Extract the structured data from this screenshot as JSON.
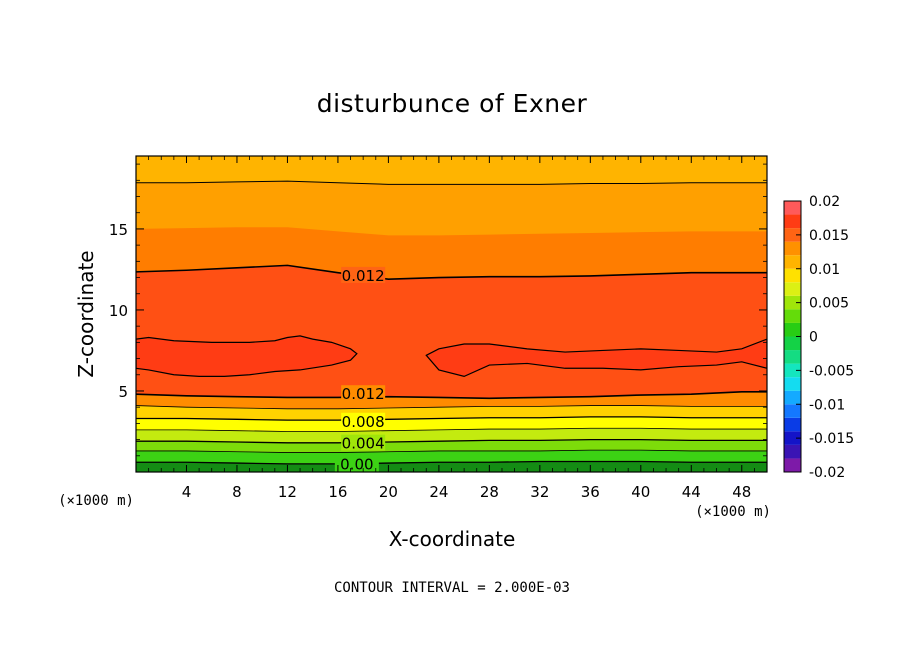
{
  "chart_data": {
    "type": "heatmap",
    "title": "disturbunce of Exner",
    "xlabel": "X-coordinate",
    "ylabel": "Z-coordinate",
    "x_unit_left": "(×1000 m)",
    "x_unit_right": "(×1000 m)",
    "xlim": [
      0,
      50
    ],
    "ylim": [
      0,
      19.5
    ],
    "x_ticks": [
      4,
      8,
      12,
      16,
      20,
      24,
      28,
      32,
      36,
      40,
      44,
      48
    ],
    "y_ticks": [
      5,
      10,
      15
    ],
    "bottom_text": "CONTOUR INTERVAL = 2.000E-03",
    "colorbar": {
      "levels": [
        -0.02,
        -0.018,
        -0.016,
        -0.014,
        -0.012,
        -0.01,
        -0.008,
        -0.006,
        -0.004,
        -0.002,
        0,
        0.002,
        0.004,
        0.006,
        0.008,
        0.01,
        0.012,
        0.014,
        0.016,
        0.018,
        0.02
      ],
      "colors": [
        "#7d1aa8",
        "#3a14b4",
        "#1414c8",
        "#0a3ce6",
        "#1478ff",
        "#14aaff",
        "#14dcf0",
        "#14e6be",
        "#14dc82",
        "#14d246",
        "#28cd14",
        "#64dc0a",
        "#a0e60a",
        "#dcf014",
        "#ffe100",
        "#ffb400",
        "#ff9100",
        "#ff6414",
        "#ff3c14",
        "#ff5a5a",
        "#ff8c8c"
      ],
      "tick_labels": [
        "0.02",
        "0.015",
        "0.01",
        "0.005",
        "0",
        "-0.005",
        "-0.01",
        "-0.015",
        "-0.02"
      ],
      "tick_values": [
        0.02,
        0.015,
        0.01,
        0.005,
        0,
        -0.005,
        -0.01,
        -0.015,
        -0.02
      ]
    },
    "band_boundaries": [
      {
        "name": "0.000",
        "z": [
          0.6,
          0.6,
          0.55,
          0.5,
          0.5,
          0.55,
          0.6,
          0.6,
          0.65,
          0.65,
          0.65,
          0.6,
          0.6
        ],
        "color": "#1e8c14"
      },
      {
        "name": "0.002",
        "z": [
          1.3,
          1.3,
          1.25,
          1.2,
          1.2,
          1.25,
          1.3,
          1.3,
          1.3,
          1.35,
          1.35,
          1.3,
          1.3
        ],
        "color": "#3cd214"
      },
      {
        "name": "0.004",
        "z": [
          1.9,
          1.9,
          1.85,
          1.8,
          1.8,
          1.85,
          1.9,
          1.95,
          1.95,
          2.0,
          2.0,
          1.95,
          1.95
        ],
        "color": "#7ddc0a"
      },
      {
        "name": "0.006",
        "z": [
          2.6,
          2.6,
          2.55,
          2.5,
          2.5,
          2.55,
          2.6,
          2.65,
          2.65,
          2.7,
          2.7,
          2.65,
          2.65
        ],
        "color": "#c3eb0f"
      },
      {
        "name": "0.008",
        "z": [
          3.3,
          3.3,
          3.25,
          3.2,
          3.2,
          3.25,
          3.3,
          3.35,
          3.35,
          3.4,
          3.4,
          3.35,
          3.35
        ],
        "color": "#ffff00"
      },
      {
        "name": "0.010",
        "z": [
          4.1,
          4.0,
          3.95,
          3.9,
          3.9,
          3.95,
          4.0,
          4.05,
          4.05,
          4.1,
          4.1,
          4.05,
          4.05
        ],
        "color": "#ffd200"
      },
      {
        "name": "0.012",
        "z": [
          4.8,
          4.7,
          4.65,
          4.6,
          4.6,
          4.65,
          4.6,
          4.55,
          4.6,
          4.65,
          4.75,
          4.8,
          4.95
        ],
        "color": "#ff8c00"
      }
    ],
    "upper_bands": [
      {
        "name": "0.012",
        "z": [
          12.35,
          12.45,
          12.6,
          12.75,
          12.3,
          11.9,
          12.0,
          12.05,
          12.05,
          12.1,
          12.2,
          12.3,
          12.3
        ],
        "color": "#ff6414"
      },
      {
        "name": "0.010",
        "z": [
          15.0,
          15.05,
          15.1,
          15.1,
          14.85,
          14.6,
          14.6,
          14.65,
          14.7,
          14.75,
          14.8,
          14.85,
          14.85
        ],
        "color": "#ff7d00"
      },
      {
        "name": "0.008",
        "z": [
          17.85,
          17.85,
          17.9,
          17.95,
          17.85,
          17.75,
          17.75,
          17.75,
          17.75,
          17.8,
          17.8,
          17.85,
          17.85
        ],
        "color": "#ffa000"
      }
    ],
    "x_samples": [
      0,
      4,
      8,
      12,
      16,
      20,
      24,
      28,
      32,
      36,
      40,
      44,
      48
    ],
    "regions": [
      {
        "name": "0.014-left",
        "x": [
          0,
          1,
          3,
          6,
          9,
          11,
          12,
          13,
          14,
          15.5,
          17,
          17.5,
          17,
          15.5,
          13,
          11,
          9,
          7,
          5,
          3,
          1,
          0
        ],
        "z": [
          8.2,
          8.3,
          8.1,
          8.0,
          8.0,
          8.1,
          8.3,
          8.4,
          8.2,
          8.0,
          7.6,
          7.3,
          6.9,
          6.6,
          6.3,
          6.2,
          6.0,
          5.9,
          5.9,
          6.0,
          6.3,
          6.4
        ],
        "color": "#ff3c14"
      },
      {
        "name": "0.014-right",
        "x": [
          23,
          24,
          26,
          28,
          31,
          34,
          37,
          40,
          43,
          46,
          48,
          50,
          50,
          48,
          46,
          43,
          40,
          37,
          34,
          31,
          28,
          26,
          24
        ],
        "z": [
          7.2,
          7.6,
          7.9,
          7.9,
          7.6,
          7.4,
          7.5,
          7.6,
          7.5,
          7.4,
          7.6,
          8.2,
          6.4,
          6.8,
          6.6,
          6.5,
          6.3,
          6.4,
          6.4,
          6.7,
          6.6,
          5.9,
          6.3
        ],
        "color": "#ff3c14"
      }
    ],
    "contour_labels": [
      {
        "text": "0.012",
        "x": 18,
        "z": 12.1
      },
      {
        "text": "0.012",
        "x": 18,
        "z": 4.8
      },
      {
        "text": "0.008",
        "x": 18,
        "z": 3.1
      },
      {
        "text": "0.004",
        "x": 18,
        "z": 1.75
      },
      {
        "text": "0.00",
        "x": 17.5,
        "z": 0.45
      }
    ]
  }
}
